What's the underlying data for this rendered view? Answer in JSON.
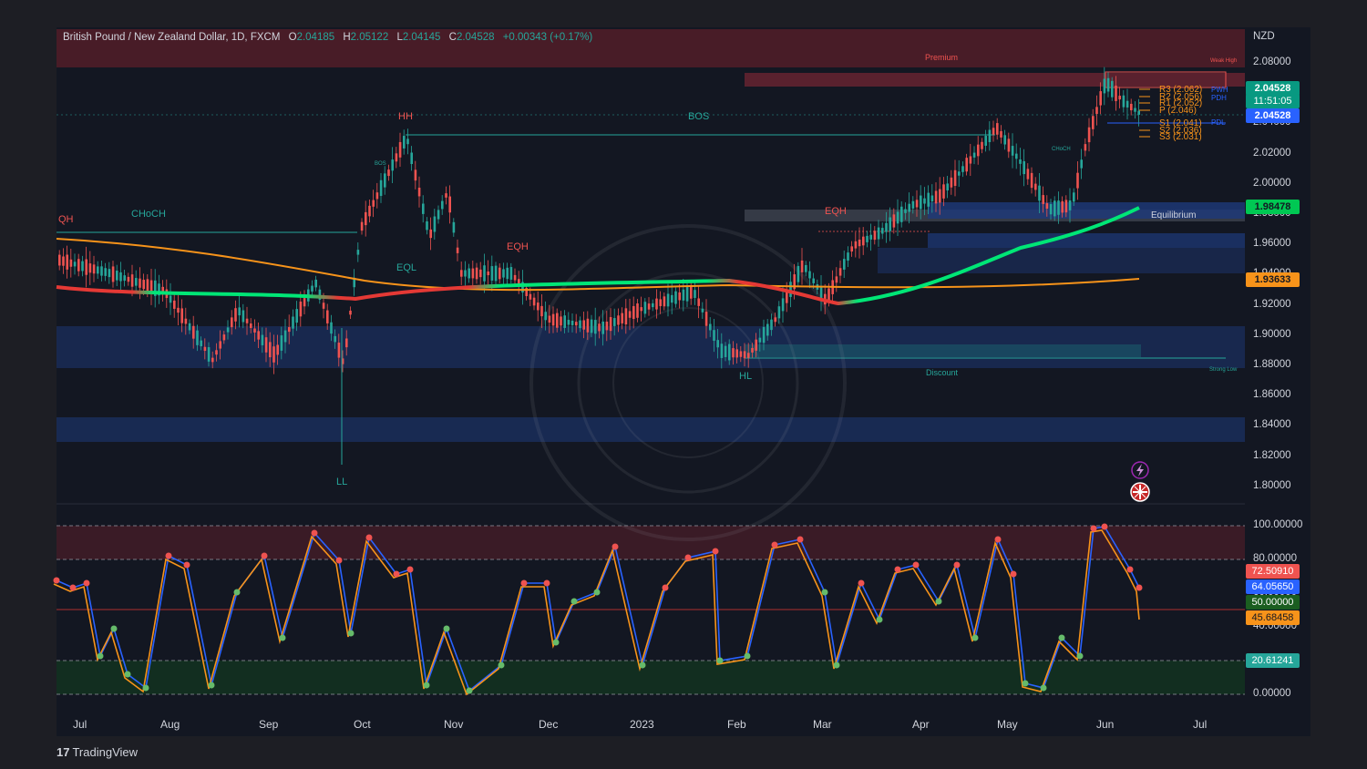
{
  "header": {
    "symbol": "British Pound / New Zealand Dollar, 1D, FXCM",
    "open_key": "O",
    "open": "2.04185",
    "high_key": "H",
    "high": "2.05122",
    "low_key": "L",
    "low": "2.04145",
    "close_key": "C",
    "close": "2.04528",
    "change": "+0.00343 (+0.17%)"
  },
  "currency": "NZD",
  "price_axis": [
    "2.08000",
    "2.06000",
    "2.04000",
    "2.02000",
    "2.00000",
    "1.98000",
    "1.96000",
    "1.94000",
    "1.92000",
    "1.90000",
    "1.88000",
    "1.86000",
    "1.84000",
    "1.82000",
    "1.80000"
  ],
  "price_tags": {
    "last_price": "2.04528",
    "countdown": "11:51:05",
    "pdl_price": "2.04528",
    "equilibrium_price": "1.98478",
    "ema_price": "1.93633"
  },
  "osc_axis": [
    "100.00000",
    "80.00000",
    "60.00000",
    "40.00000",
    "20.00000",
    "0.00000"
  ],
  "osc_tags": {
    "red": "72.50910",
    "blue": "64.05650",
    "green": "50.00000",
    "orange": "45.68458",
    "lower": "20.61241"
  },
  "time_axis": [
    "Jul",
    "Aug",
    "Sep",
    "Oct",
    "Nov",
    "Dec",
    "2023",
    "Feb",
    "Mar",
    "Apr",
    "May",
    "Jun",
    "Jul"
  ],
  "annotations": {
    "premium": "Premium",
    "discount": "Discount",
    "equilibrium": "Equilibrium",
    "weak_high": "Weak High",
    "strong_low": "Strong Low",
    "qh": "QH",
    "choch_main": "CHoCH",
    "hh": "HH",
    "bos_main": "BOS",
    "eqh_1": "EQH",
    "eql": "EQL",
    "eqh_2": "EQH",
    "ll": "LL",
    "hl": "HL",
    "bos_small": "BOS",
    "choch_small": "CHoCH"
  },
  "pivots": {
    "r3": "R3 (2.062)",
    "r2": "R2 (2.056)",
    "r1": "R1 (2.052)",
    "p": "P (2.046)",
    "s1": "S1 (2.041)",
    "s2": "S2 (2.036)",
    "s3": "S3 (2.031)",
    "pwh": "PWH",
    "pdh": "PDH",
    "pdl": "PDL"
  },
  "branding": "TradingView",
  "colors": {
    "bull": "#26a69a",
    "bear": "#ef5350",
    "premium_zone": "#5b1f2a",
    "discount_zone": "#1e3a7a",
    "ema_green": "#00e676",
    "ema_red": "#e53935",
    "ma_orange": "#f7931a",
    "stoch_blue": "#2962ff",
    "stoch_orange": "#f7931a"
  },
  "icons": [
    "lightning-icon",
    "uk-flag-icon"
  ]
}
